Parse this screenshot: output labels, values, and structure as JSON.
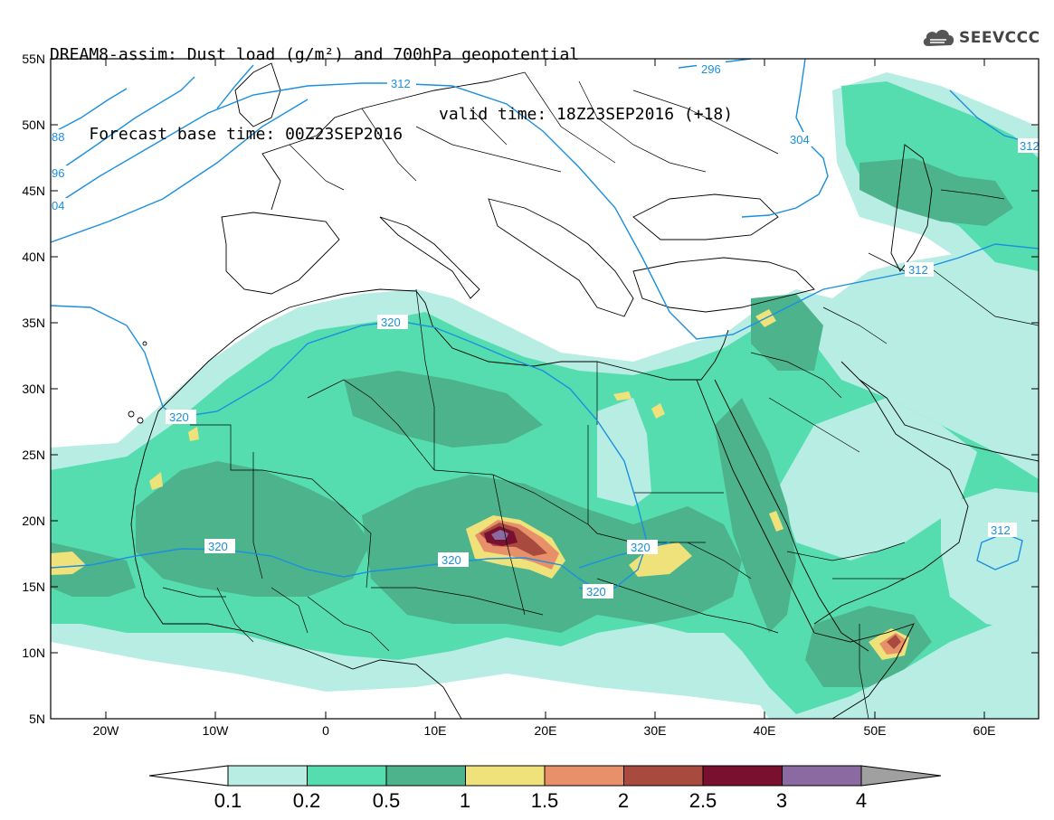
{
  "header": {
    "title_line1": "DREAM8-assim: Dust load (g/m²) and 700hPa geopotential",
    "title_line2_base": "Forecast base time: 00Z23SEP2016",
    "title_line2_valid": "valid time: 18Z23SEP2016 (+18)",
    "logo_text": "SEEVCCC",
    "logo_icon": "cloud-logo-icon"
  },
  "map": {
    "lat_labels": [
      "55N",
      "50N",
      "45N",
      "40N",
      "35N",
      "30N",
      "25N",
      "20N",
      "15N",
      "10N",
      "5N"
    ],
    "lon_labels": [
      "20W",
      "10W",
      "0",
      "10E",
      "20E",
      "30E",
      "40E",
      "50E",
      "60E"
    ],
    "contour_labels": [
      "296",
      "304",
      "312",
      "312",
      "312",
      "320",
      "320",
      "320",
      "320",
      "320",
      "320",
      "312",
      "88",
      "96",
      "04",
      "31"
    ],
    "contour_color": "#1a8fe0",
    "coast_color": "#000000"
  },
  "colorbar": {
    "labels": [
      "0.1",
      "0.2",
      "0.5",
      "1",
      "1.5",
      "2",
      "2.5",
      "3",
      "4"
    ],
    "colors": [
      "#ffffff",
      "#b8ede4",
      "#55ddb0",
      "#4cb38c",
      "#f0e27a",
      "#e8906a",
      "#a84a3e",
      "#7a1030",
      "#8a6aa0",
      "#a0a0a0"
    ]
  }
}
